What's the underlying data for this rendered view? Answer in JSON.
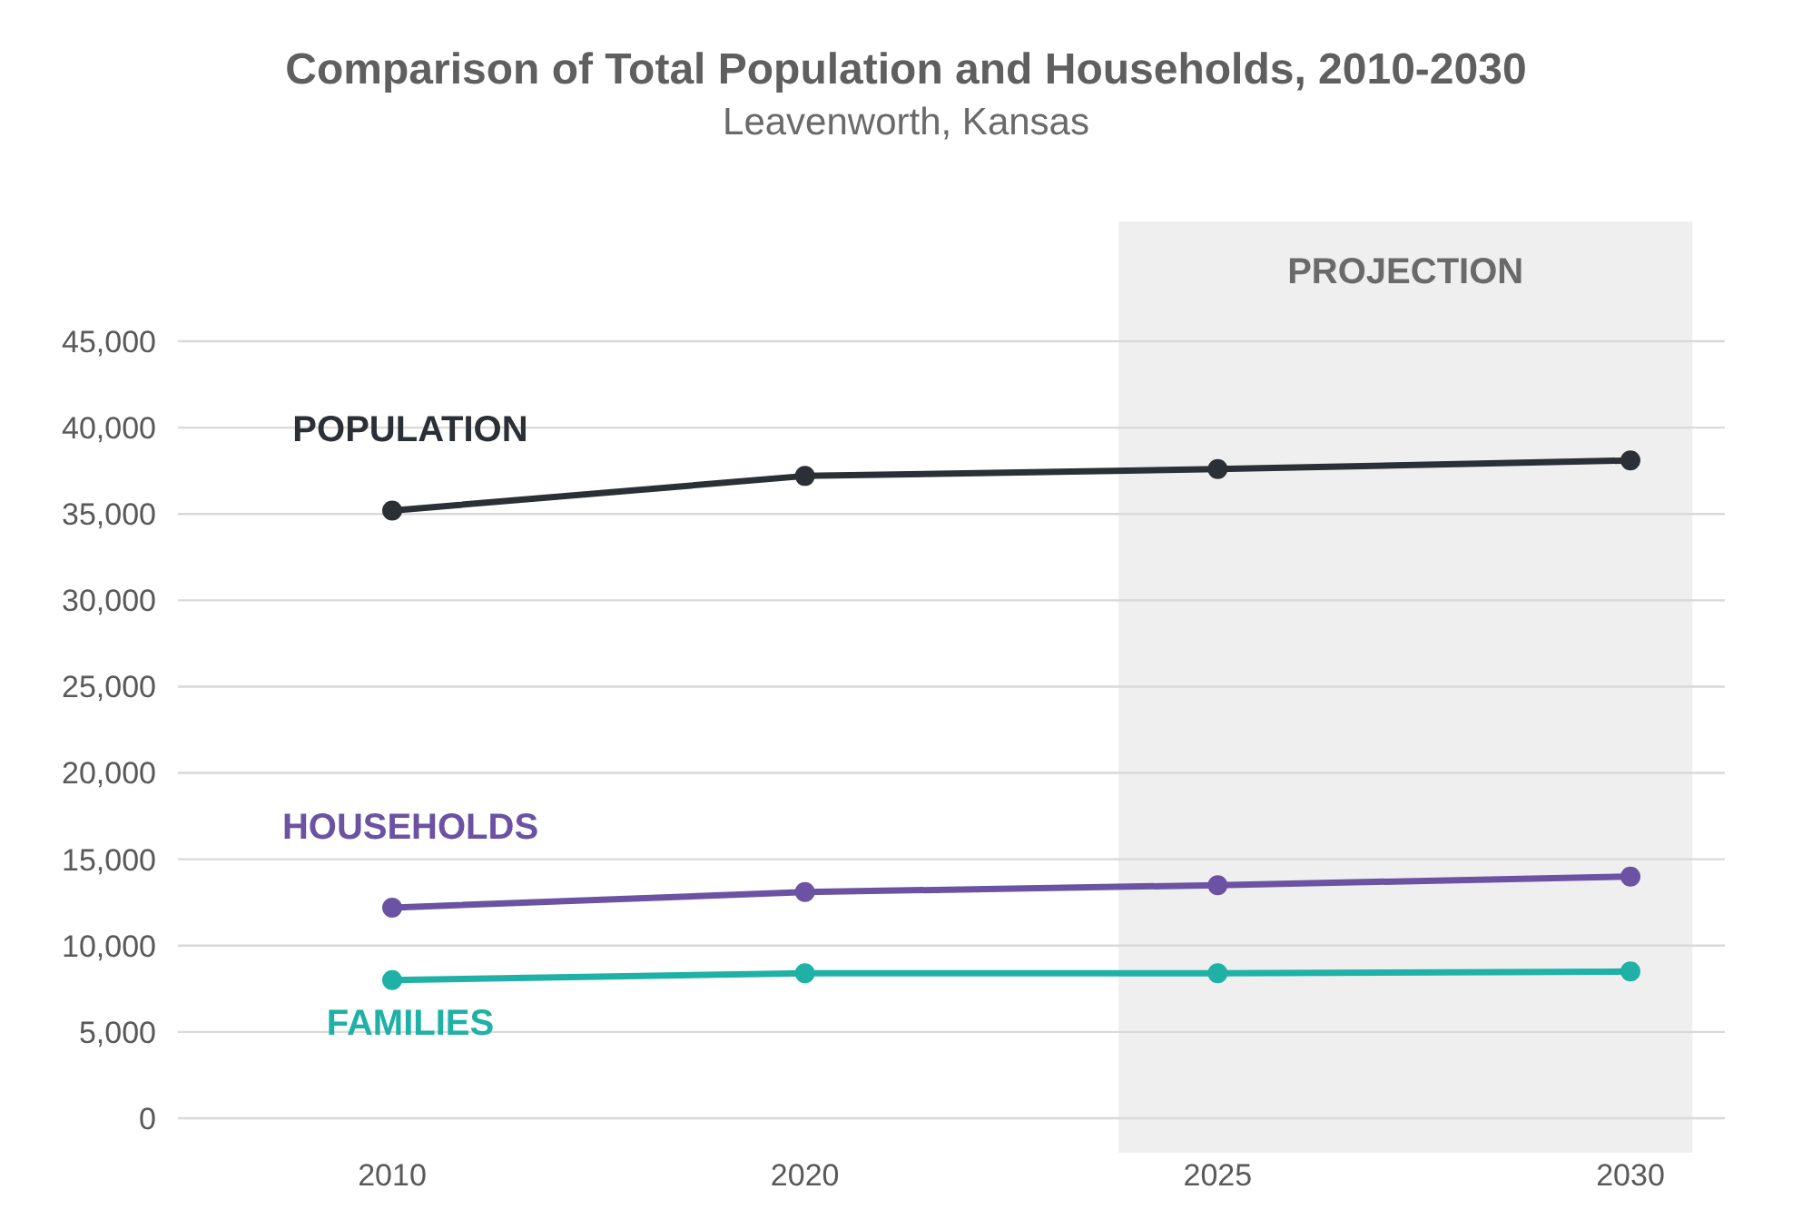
{
  "chart_data": {
    "type": "line",
    "title": "Comparison of Total Population and Households, 2010-2030",
    "subtitle": "Leavenworth, Kansas",
    "categories": [
      "2010",
      "2020",
      "2025",
      "2030"
    ],
    "series": [
      {
        "name": "POPULATION",
        "color": "#2b2f36",
        "values": [
          35200,
          37200,
          37600,
          38100
        ]
      },
      {
        "name": "HOUSEHOLDS",
        "color": "#6b52a3",
        "values": [
          12200,
          13100,
          13500,
          14000
        ]
      },
      {
        "name": "FAMILIES",
        "color": "#1fb0a6",
        "values": [
          8000,
          8400,
          8400,
          8500
        ]
      }
    ],
    "ylim": [
      0,
      45000
    ],
    "yticks": [
      {
        "value": 0,
        "label": "0"
      },
      {
        "value": 5000,
        "label": "5,000"
      },
      {
        "value": 10000,
        "label": "10,000"
      },
      {
        "value": 15000,
        "label": "15,000"
      },
      {
        "value": 20000,
        "label": "20,000"
      },
      {
        "value": 25000,
        "label": "25,000"
      },
      {
        "value": 30000,
        "label": "30,000"
      },
      {
        "value": 35000,
        "label": "35,000"
      },
      {
        "value": 40000,
        "label": "40,000"
      },
      {
        "value": 45000,
        "label": "45,000"
      }
    ],
    "bands": [
      {
        "axis": "x",
        "from": "2025",
        "to": "2030",
        "label": "PROJECTION",
        "color": "#efefef"
      }
    ],
    "grid": "y",
    "marker": "circle",
    "line_style": "solid"
  }
}
